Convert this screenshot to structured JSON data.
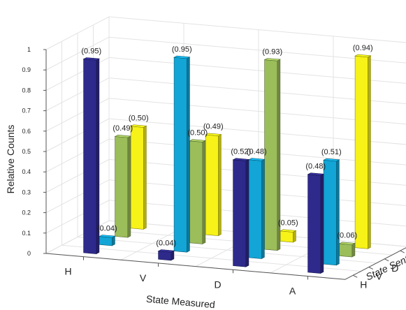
{
  "chart_data": {
    "type": "bar",
    "subtype": "3d-bar",
    "title": "",
    "xlabel": "State Measured",
    "ylabel": "Relative Counts",
    "zlabel": "State Sent",
    "categories": [
      "H",
      "V",
      "D",
      "A"
    ],
    "y_categories": [
      "H",
      "V",
      "D",
      "A"
    ],
    "zlim": [
      0,
      1
    ],
    "zticks": [
      "0",
      "0.1",
      "0.2",
      "0.3",
      "0.4",
      "0.5",
      "0.6",
      "0.7",
      "0.8",
      "0.9",
      "1"
    ],
    "grid": true,
    "series": [
      {
        "sent": "H",
        "color": "#2e2a8c",
        "values": [
          0.95,
          0.04,
          0.52,
          0.48
        ],
        "labels": [
          "(0.95)",
          "(0.04)",
          "(0.52)",
          "(0.48)"
        ]
      },
      {
        "sent": "V",
        "color": "#12a5d6",
        "values": [
          0.04,
          0.95,
          0.48,
          0.51
        ],
        "labels": [
          "(0.04)",
          "(0.95)",
          "(0.48)",
          "(0.51)"
        ]
      },
      {
        "sent": "D",
        "color": "#9bbd5a",
        "values": [
          0.49,
          0.5,
          0.93,
          0.06
        ],
        "labels": [
          "(0.49)",
          "(0.50)",
          "(0.93)",
          "(0.06)"
        ]
      },
      {
        "sent": "A",
        "color": "#f7f218",
        "values": [
          0.5,
          0.49,
          0.05,
          0.94
        ],
        "labels": [
          "(0.50)",
          "(0.49)",
          "(0.05)",
          "(0.94)"
        ]
      }
    ]
  }
}
